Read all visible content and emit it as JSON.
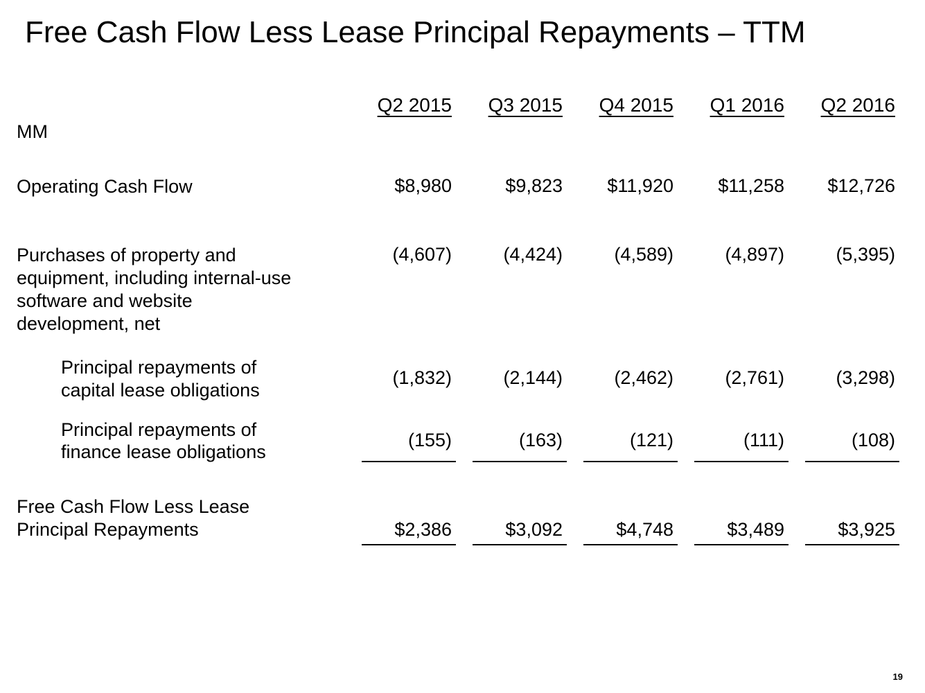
{
  "slide": {
    "title": "Free Cash Flow Less Lease Principal Repayments – TTM",
    "unit_label": "MM",
    "page_number": "19"
  },
  "table": {
    "columns": [
      "Q2 2015",
      "Q3 2015",
      "Q4 2015",
      "Q1 2016",
      "Q2 2016"
    ],
    "rows": [
      {
        "label": "Operating Cash Flow",
        "label_lines": [
          "Operating Cash Flow"
        ],
        "values": [
          "$8,980",
          "$9,823",
          "$11,920",
          "$11,258",
          "$12,726"
        ]
      },
      {
        "label": "Purchases of property and equipment, including internal-use software and website development, net",
        "label_lines": [
          "Purchases of property and",
          "equipment, including internal-use",
          "software and website",
          "development, net"
        ],
        "values": [
          "(4,607)",
          "(4,424)",
          "(4,589)",
          "(4,897)",
          "(5,395)"
        ]
      },
      {
        "label": "Principal repayments of capital lease obligations",
        "label_lines": [
          "Principal repayments of",
          "capital lease obligations"
        ],
        "values": [
          "(1,832)",
          "(2,144)",
          "(2,462)",
          "(2,761)",
          "(3,298)"
        ]
      },
      {
        "label": "Principal repayments of finance lease obligations",
        "label_lines": [
          "Principal repayments of",
          "finance lease obligations"
        ],
        "values": [
          "(155)",
          "(163)",
          "(121)",
          "(111)",
          "(108)"
        ]
      },
      {
        "label": "Free Cash Flow Less Lease Principal Repayments",
        "label_lines": [
          "Free Cash Flow Less Lease",
          "Principal Repayments"
        ],
        "values": [
          "$2,386",
          "$3,092",
          "$4,748",
          "$3,489",
          "$3,925"
        ]
      }
    ]
  }
}
